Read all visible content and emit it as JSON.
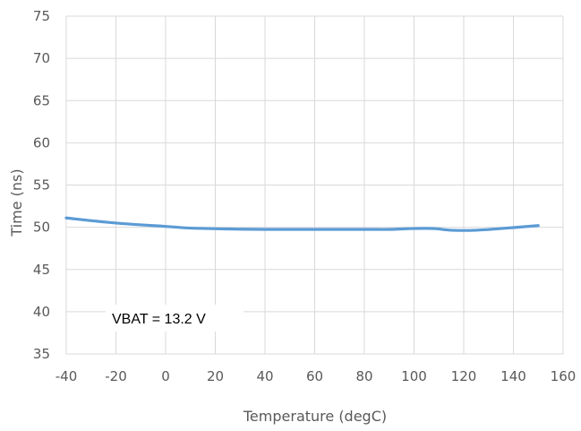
{
  "chart_data": {
    "type": "line",
    "title": "",
    "xlabel": "Temperature (degC)",
    "ylabel": "Time (ns)",
    "xlim": [
      -40,
      160
    ],
    "ylim": [
      35,
      75
    ],
    "x_ticks": [
      "-40",
      "-20",
      "0",
      "20",
      "40",
      "60",
      "80",
      "100",
      "120",
      "140",
      "160"
    ],
    "y_ticks": [
      "35",
      "40",
      "45",
      "50",
      "55",
      "60",
      "65",
      "70",
      "75"
    ],
    "grid": true,
    "legend": "none",
    "annotation": "VBAT = 13.2 V",
    "series": [
      {
        "color": "#5b9bd5",
        "x": [
          -40,
          -20,
          0,
          10,
          25,
          40,
          60,
          80,
          90,
          100,
          108,
          115,
          125,
          135,
          150
        ],
        "y": [
          51.1,
          50.5,
          50.1,
          49.9,
          49.8,
          49.75,
          49.75,
          49.75,
          49.75,
          49.85,
          49.85,
          49.65,
          49.65,
          49.85,
          50.2
        ]
      }
    ]
  }
}
